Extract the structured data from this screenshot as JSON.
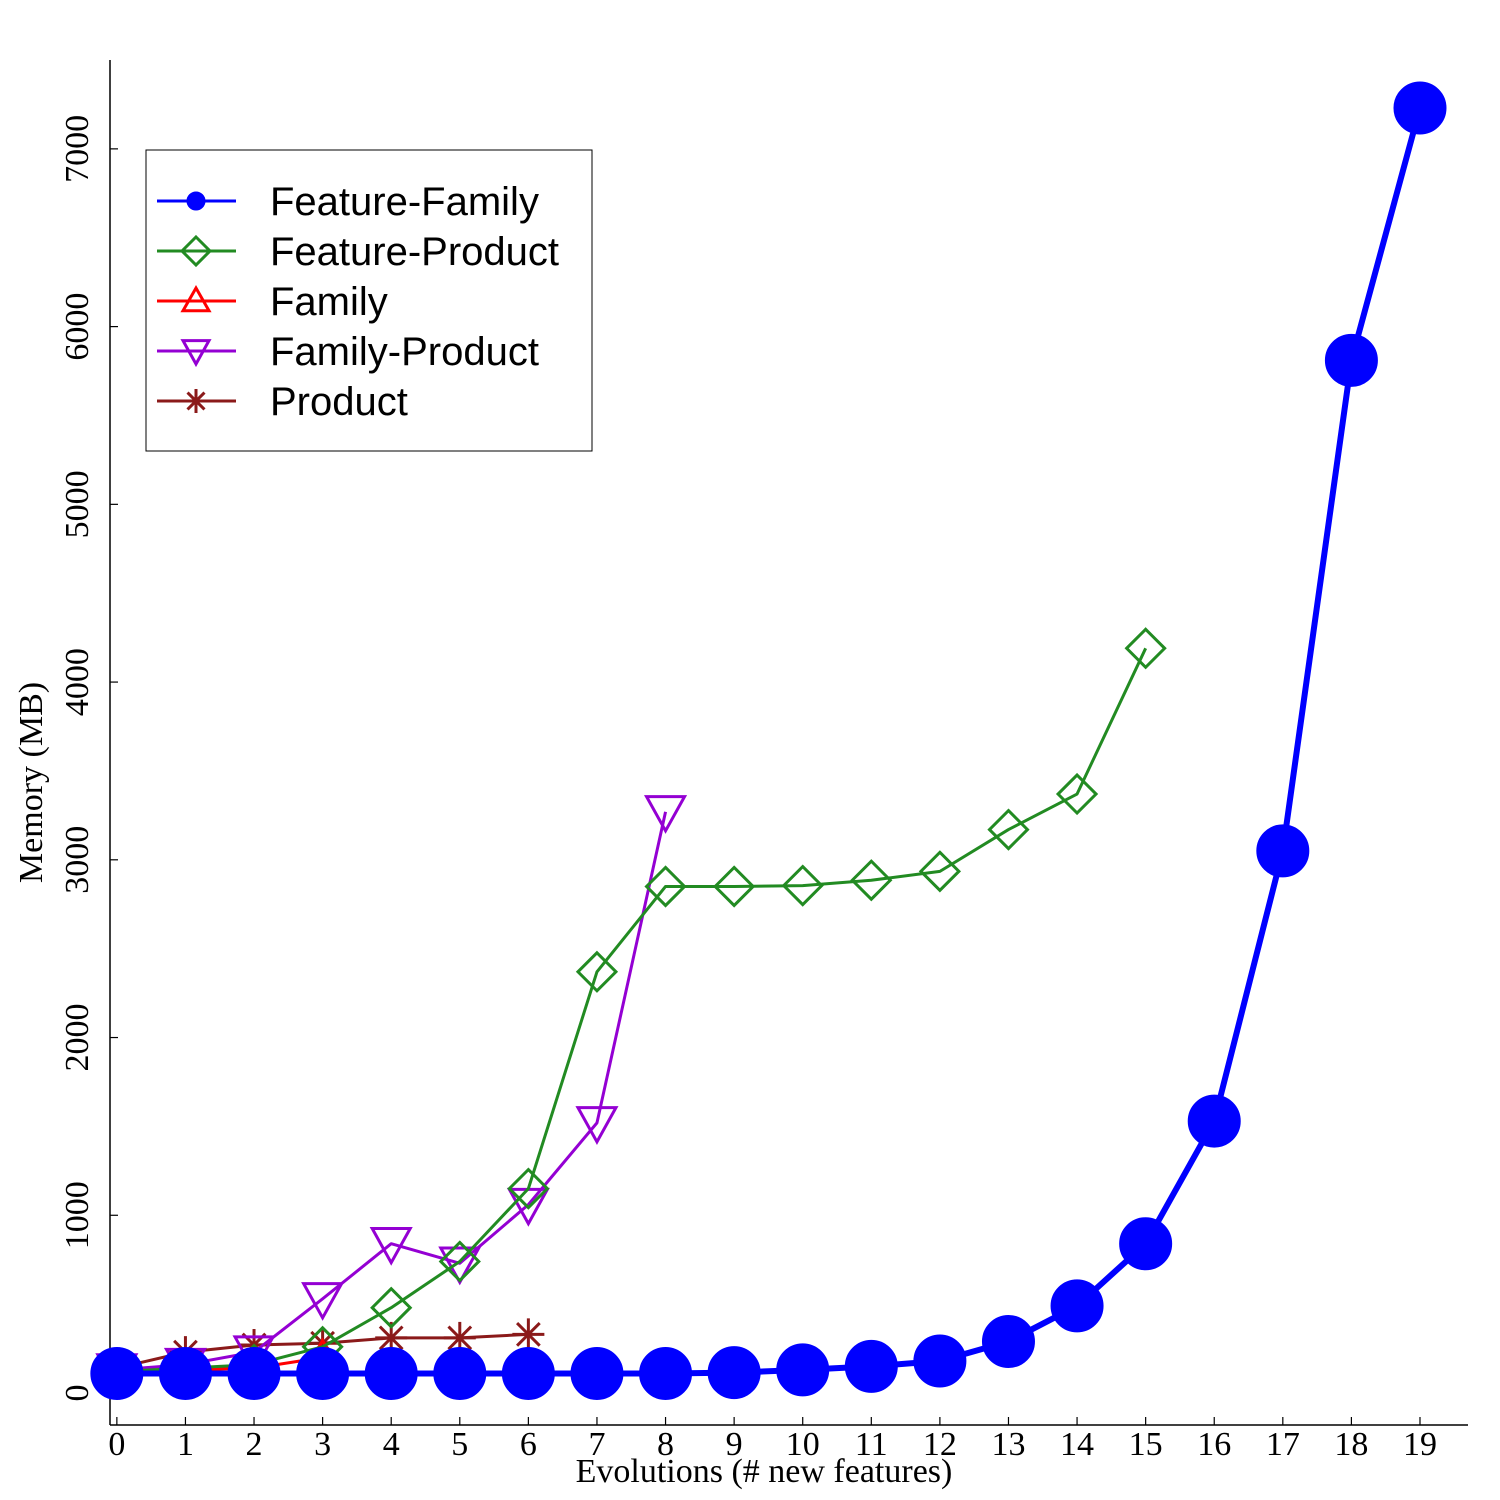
{
  "chart_data": {
    "type": "line",
    "title": "",
    "xlabel": "Evolutions (# new features)",
    "ylabel": "Memory (MB)",
    "xlim": [
      -0.1,
      19.7
    ],
    "ylim": [
      -180,
      7500
    ],
    "x_ticks": [
      0,
      1,
      2,
      3,
      4,
      5,
      6,
      7,
      8,
      9,
      10,
      11,
      12,
      13,
      14,
      15,
      16,
      17,
      18,
      19
    ],
    "y_ticks": [
      0,
      1000,
      2000,
      3000,
      4000,
      5000,
      6000,
      7000
    ],
    "legend_position": "top-left",
    "grid": false,
    "series": [
      {
        "name": "Feature-Family",
        "color": "#0000ff",
        "marker": "circle",
        "x": [
          0,
          1,
          2,
          3,
          4,
          5,
          6,
          7,
          8,
          9,
          10,
          11,
          12,
          13,
          14,
          15,
          16,
          17,
          18,
          19
        ],
        "values": [
          110,
          110,
          110,
          110,
          110,
          110,
          110,
          110,
          110,
          115,
          130,
          150,
          180,
          290,
          490,
          840,
          1530,
          3050,
          5810,
          7230
        ]
      },
      {
        "name": "Feature-Product",
        "color": "#228b22",
        "marker": "diamond",
        "x": [
          0,
          1,
          2,
          3,
          4,
          5,
          6,
          7,
          8,
          9,
          10,
          11,
          12,
          13,
          14,
          15
        ],
        "values": [
          120,
          140,
          160,
          260,
          480,
          740,
          1150,
          2370,
          2850,
          2850,
          2855,
          2885,
          2935,
          3170,
          3370,
          4190
        ]
      },
      {
        "name": "Family",
        "color": "#ff0000",
        "marker": "triangle-up",
        "x": [
          0,
          1,
          2,
          3
        ],
        "values": [
          120,
          130,
          140,
          200
        ]
      },
      {
        "name": "Family-Product",
        "color": "#9400d3",
        "marker": "triangle-down",
        "x": [
          0,
          1,
          2,
          3,
          4,
          5,
          6,
          7,
          8
        ],
        "values": [
          130,
          160,
          230,
          530,
          840,
          730,
          1060,
          1520,
          3270
        ]
      },
      {
        "name": "Product",
        "color": "#8b1a1a",
        "marker": "star",
        "x": [
          0,
          1,
          2,
          3,
          4,
          5,
          6
        ],
        "values": [
          140,
          230,
          270,
          280,
          310,
          310,
          330
        ]
      }
    ]
  }
}
